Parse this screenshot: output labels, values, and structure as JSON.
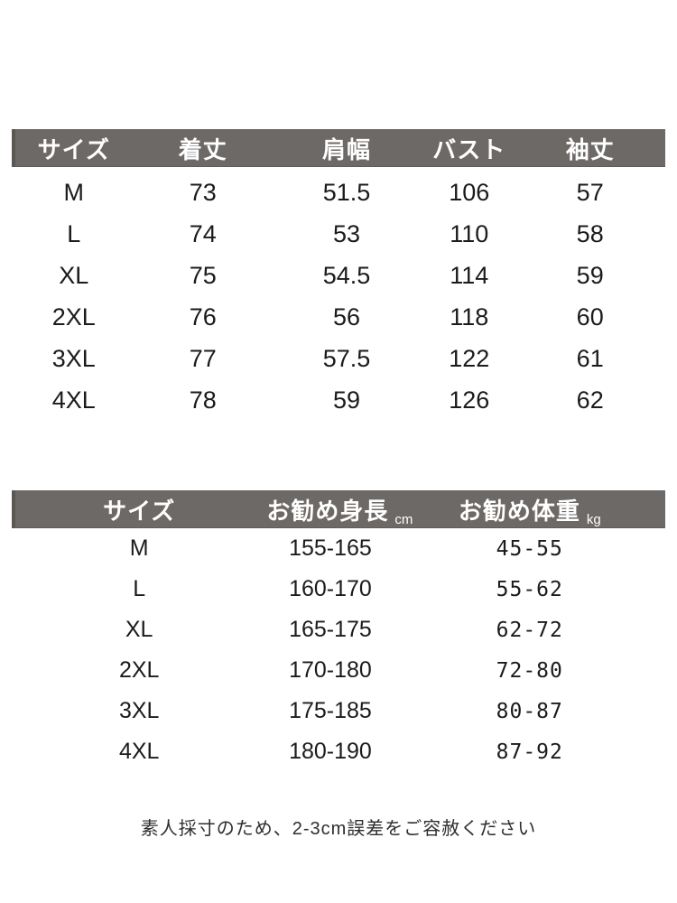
{
  "colors": {
    "header_background": "#6d6966",
    "header_edge": "#5b5752",
    "header_text": "#ffffff",
    "body_text": "#1b1b1b",
    "page_background": "#ffffff"
  },
  "size_table": {
    "columns": [
      "サイズ",
      "着丈",
      "肩幅",
      "バスト",
      "袖丈"
    ],
    "rows": [
      [
        "M",
        "73",
        "51.5",
        "106",
        "57"
      ],
      [
        "L",
        "74",
        "53",
        "110",
        "58"
      ],
      [
        "XL",
        "75",
        "54.5",
        "114",
        "59"
      ],
      [
        "2XL",
        "76",
        "56",
        "118",
        "60"
      ],
      [
        "3XL",
        "77",
        "57.5",
        "122",
        "61"
      ],
      [
        "4XL",
        "78",
        "59",
        "126",
        "62"
      ]
    ]
  },
  "fit_table": {
    "columns": [
      {
        "label": "サイズ",
        "unit": ""
      },
      {
        "label": "お勧め身長",
        "unit": "cm"
      },
      {
        "label": "お勧め体重",
        "unit": "kg"
      }
    ],
    "rows": [
      [
        "M",
        "155-165",
        "45-55"
      ],
      [
        "L",
        "160-170",
        "55-62"
      ],
      [
        "XL",
        "165-175",
        "62-72"
      ],
      [
        "2XL",
        "170-180",
        "72-80"
      ],
      [
        "3XL",
        "175-185",
        "80-87"
      ],
      [
        "4XL",
        "180-190",
        "87-92"
      ]
    ]
  },
  "footer": {
    "note": "素人採寸のため、2-3cm誤差をご容赦ください"
  }
}
